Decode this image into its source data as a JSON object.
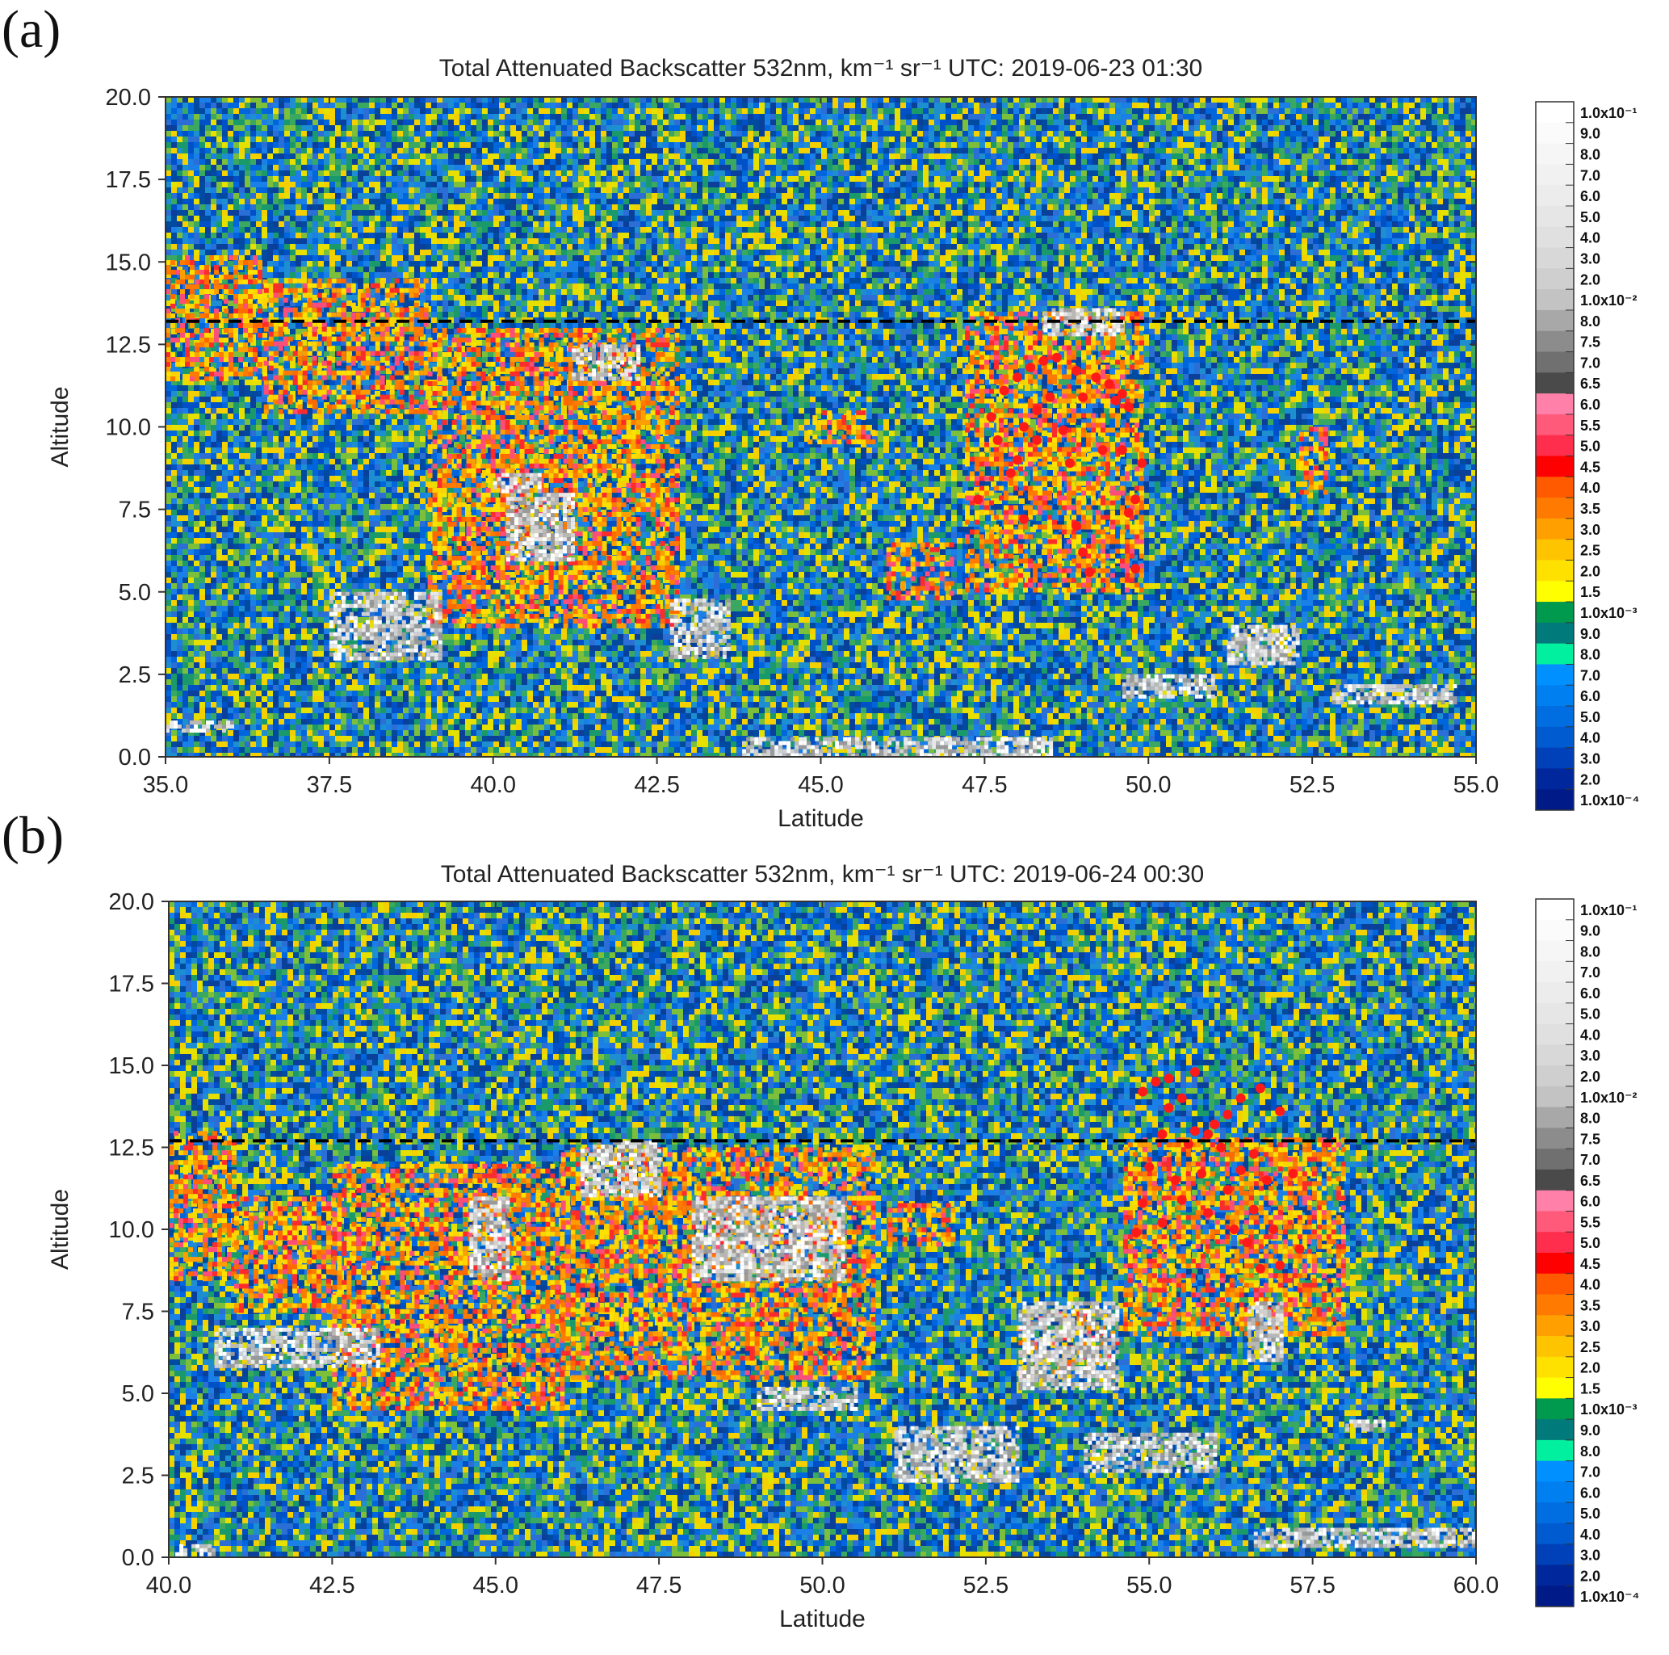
{
  "chart_data": [
    {
      "type": "heatmap",
      "panel_label": "(a)",
      "title": "Total Attenuated Backscatter 532nm, km⁻¹ sr⁻¹  UTC: 2019-06-23 01:30",
      "xlabel": "Latitude",
      "ylabel": "Altitude",
      "xlim": [
        35.0,
        55.0
      ],
      "ylim": [
        0.0,
        20.0
      ],
      "xticks": [
        "35.0",
        "37.5",
        "40.0",
        "42.5",
        "45.0",
        "47.5",
        "50.0",
        "52.5",
        "55.0"
      ],
      "yticks": [
        "0.0",
        "2.5",
        "5.0",
        "7.5",
        "10.0",
        "12.5",
        "15.0",
        "17.5",
        "20.0"
      ],
      "reference_line": {
        "y": 13.2,
        "style": "dashed",
        "color": "#000000"
      },
      "cloud_regions": [
        {
          "x": [
            35.0,
            36.5
          ],
          "y": [
            11.5,
            15.2
          ],
          "level": "high"
        },
        {
          "x": [
            36.5,
            39.0
          ],
          "y": [
            10.5,
            14.5
          ],
          "level": "high"
        },
        {
          "x": [
            39.0,
            42.8
          ],
          "y": [
            4.0,
            13.0
          ],
          "level": "high"
        },
        {
          "x": [
            46.0,
            47.0
          ],
          "y": [
            4.8,
            6.5
          ],
          "level": "high"
        },
        {
          "x": [
            47.2,
            49.9
          ],
          "y": [
            5.0,
            13.5
          ],
          "level": "high"
        },
        {
          "x": [
            44.8,
            45.8
          ],
          "y": [
            9.5,
            10.5
          ],
          "level": "high"
        },
        {
          "x": [
            52.3,
            52.7
          ],
          "y": [
            8.0,
            10.0
          ],
          "level": "high"
        }
      ],
      "opaque_cloud_regions": [
        {
          "x": [
            37.5,
            39.2
          ],
          "y": [
            3.0,
            5.0
          ]
        },
        {
          "x": [
            40.0,
            40.7
          ],
          "y": [
            8.0,
            8.6
          ]
        },
        {
          "x": [
            40.2,
            41.2
          ],
          "y": [
            6.0,
            8.0
          ]
        },
        {
          "x": [
            41.2,
            42.2
          ],
          "y": [
            11.5,
            12.5
          ]
        },
        {
          "x": [
            42.7,
            43.6
          ],
          "y": [
            3.0,
            4.8
          ]
        },
        {
          "x": [
            48.4,
            49.6
          ],
          "y": [
            12.8,
            13.6
          ]
        },
        {
          "x": [
            35.0,
            36.0
          ],
          "y": [
            0.8,
            1.1
          ]
        },
        {
          "x": [
            43.8,
            48.5
          ],
          "y": [
            0.0,
            0.6
          ]
        },
        {
          "x": [
            49.6,
            51.0
          ],
          "y": [
            1.8,
            2.5
          ]
        },
        {
          "x": [
            51.2,
            52.3
          ],
          "y": [
            2.8,
            4.0
          ]
        },
        {
          "x": [
            52.8,
            54.7
          ],
          "y": [
            1.6,
            2.2
          ]
        }
      ],
      "highlight_points": [
        [
          47.6,
          10.3
        ],
        [
          47.7,
          9.6
        ],
        [
          47.8,
          11.1
        ],
        [
          47.9,
          8.6
        ],
        [
          48.0,
          11.5
        ],
        [
          48.0,
          9.0
        ],
        [
          48.1,
          7.2
        ],
        [
          48.1,
          10.0
        ],
        [
          48.2,
          11.8
        ],
        [
          48.3,
          9.6
        ],
        [
          48.3,
          10.5
        ],
        [
          48.4,
          12.0
        ],
        [
          48.5,
          10.9
        ],
        [
          48.6,
          12.1
        ],
        [
          48.7,
          9.9
        ],
        [
          48.8,
          8.9
        ],
        [
          48.9,
          11.7
        ],
        [
          48.9,
          7.0
        ],
        [
          49.0,
          10.9
        ],
        [
          49.0,
          6.2
        ],
        [
          49.1,
          5.6
        ],
        [
          49.2,
          11.5
        ],
        [
          49.3,
          9.3
        ],
        [
          49.4,
          11.3
        ],
        [
          49.5,
          10.8
        ],
        [
          49.6,
          9.3
        ],
        [
          49.6,
          11.0
        ],
        [
          49.7,
          7.4
        ],
        [
          49.7,
          10.6
        ],
        [
          49.8,
          5.7
        ],
        [
          49.8,
          7.8
        ],
        [
          49.9,
          8.9
        ],
        [
          47.4,
          7.8
        ]
      ],
      "colorbar": {
        "labels": [
          "1.0x10⁻¹",
          "9.0",
          "8.0",
          "7.0",
          "6.0",
          "5.0",
          "4.0",
          "3.0",
          "2.0",
          "1.0x10⁻²",
          "8.0",
          "7.5",
          "7.0",
          "6.5",
          "6.0",
          "5.5",
          "5.0",
          "4.5",
          "4.0",
          "3.5",
          "3.0",
          "2.5",
          "2.0",
          "1.5",
          "1.0x10⁻³",
          "9.0",
          "8.0",
          "7.0",
          "6.0",
          "5.0",
          "4.0",
          "3.0",
          "2.0",
          "1.0x10⁻⁴"
        ],
        "colors": [
          "#ffffff",
          "#fbfbfb",
          "#f6f6f6",
          "#f1f1f1",
          "#ececec",
          "#e6e6e6",
          "#e0e0e0",
          "#d8d8d8",
          "#cfcfcf",
          "#c3c3c3",
          "#a8a8a8",
          "#8c8c8c",
          "#707070",
          "#4a4a4a",
          "#ff80a8",
          "#ff5a7a",
          "#ff2e4c",
          "#ff0000",
          "#ff5a00",
          "#ff7a00",
          "#ffa000",
          "#ffc400",
          "#ffe100",
          "#ffff00",
          "#009a4e",
          "#007a7a",
          "#00f0a0",
          "#0090ff",
          "#0080f0",
          "#006ee0",
          "#005ad0",
          "#0040b8",
          "#00289c",
          "#001a88"
        ]
      }
    },
    {
      "type": "heatmap",
      "panel_label": "(b)",
      "title": "Total Attenuated Backscatter 532nm, km⁻¹ sr⁻¹  UTC: 2019-06-24 00:30",
      "xlabel": "Latitude",
      "ylabel": "Altitude",
      "xlim": [
        40.0,
        60.0
      ],
      "ylim": [
        0.0,
        20.0
      ],
      "xticks": [
        "40.0",
        "42.5",
        "45.0",
        "47.5",
        "50.0",
        "52.5",
        "55.0",
        "57.5",
        "60.0"
      ],
      "yticks": [
        "0.0",
        "2.5",
        "5.0",
        "7.5",
        "10.0",
        "12.5",
        "15.0",
        "17.5",
        "20.0"
      ],
      "reference_line": {
        "y": 12.7,
        "style": "dashed",
        "color": "#000000"
      },
      "cloud_regions": [
        {
          "x": [
            40.0,
            41.0
          ],
          "y": [
            8.5,
            13.0
          ],
          "level": "high"
        },
        {
          "x": [
            41.0,
            42.5
          ],
          "y": [
            7.5,
            11.0
          ],
          "level": "high"
        },
        {
          "x": [
            42.5,
            46.0
          ],
          "y": [
            4.5,
            12.0
          ],
          "level": "high"
        },
        {
          "x": [
            46.0,
            50.8
          ],
          "y": [
            5.5,
            12.5
          ],
          "level": "high"
        },
        {
          "x": [
            51.0,
            52.0
          ],
          "y": [
            9.5,
            10.8
          ],
          "level": "high"
        },
        {
          "x": [
            54.6,
            58.0
          ],
          "y": [
            6.8,
            12.8
          ],
          "level": "high"
        },
        {
          "x": [
            53.0,
            54.5
          ],
          "y": [
            5.5,
            7.5
          ],
          "level": "mid"
        }
      ],
      "opaque_cloud_regions": [
        {
          "x": [
            40.7,
            43.2
          ],
          "y": [
            5.8,
            7.0
          ]
        },
        {
          "x": [
            46.3,
            47.5
          ],
          "y": [
            11.0,
            12.7
          ]
        },
        {
          "x": [
            44.6,
            45.2
          ],
          "y": [
            8.5,
            11.0
          ]
        },
        {
          "x": [
            48.0,
            50.3
          ],
          "y": [
            8.5,
            11.0
          ]
        },
        {
          "x": [
            49.0,
            50.5
          ],
          "y": [
            4.5,
            5.2
          ]
        },
        {
          "x": [
            51.1,
            53.0
          ],
          "y": [
            2.3,
            4.0
          ]
        },
        {
          "x": [
            53.0,
            54.5
          ],
          "y": [
            5.2,
            7.8
          ]
        },
        {
          "x": [
            54.0,
            56.0
          ],
          "y": [
            2.6,
            3.8
          ]
        },
        {
          "x": [
            56.5,
            57.0
          ],
          "y": [
            6.0,
            7.8
          ]
        },
        {
          "x": [
            40.1,
            40.7
          ],
          "y": [
            0.1,
            0.4
          ]
        },
        {
          "x": [
            56.6,
            60.0
          ],
          "y": [
            0.4,
            0.9
          ]
        },
        {
          "x": [
            58.0,
            58.6
          ],
          "y": [
            3.9,
            4.2
          ]
        }
      ],
      "highlight_points": [
        [
          54.8,
          9.9
        ],
        [
          54.9,
          10.8
        ],
        [
          54.9,
          14.2
        ],
        [
          55.0,
          11.9
        ],
        [
          55.1,
          14.5
        ],
        [
          55.2,
          12.9
        ],
        [
          55.2,
          10.2
        ],
        [
          55.3,
          14.6
        ],
        [
          55.3,
          13.7
        ],
        [
          55.4,
          11.5
        ],
        [
          55.5,
          14.0
        ],
        [
          55.5,
          10.9
        ],
        [
          55.6,
          12.6
        ],
        [
          55.7,
          14.8
        ],
        [
          55.7,
          13.0
        ],
        [
          55.8,
          11.7
        ],
        [
          55.9,
          12.9
        ],
        [
          55.9,
          10.5
        ],
        [
          56.0,
          13.2
        ],
        [
          56.1,
          12.5
        ],
        [
          56.2,
          11.2
        ],
        [
          56.2,
          13.5
        ],
        [
          56.3,
          10.0
        ],
        [
          56.4,
          14.0
        ],
        [
          56.4,
          11.8
        ],
        [
          56.5,
          9.6
        ],
        [
          56.6,
          12.3
        ],
        [
          56.6,
          10.6
        ],
        [
          56.7,
          14.3
        ],
        [
          56.7,
          8.8
        ],
        [
          56.8,
          11.5
        ],
        [
          56.9,
          10.0
        ],
        [
          57.0,
          13.6
        ],
        [
          57.0,
          8.9
        ],
        [
          57.2,
          11.7
        ],
        [
          57.3,
          9.4
        ]
      ],
      "colorbar": {
        "labels": [
          "1.0x10⁻¹",
          "9.0",
          "8.0",
          "7.0",
          "6.0",
          "5.0",
          "4.0",
          "3.0",
          "2.0",
          "1.0x10⁻²",
          "8.0",
          "7.5",
          "7.0",
          "6.5",
          "6.0",
          "5.5",
          "5.0",
          "4.5",
          "4.0",
          "3.5",
          "3.0",
          "2.5",
          "2.0",
          "1.5",
          "1.0x10⁻³",
          "9.0",
          "8.0",
          "7.0",
          "6.0",
          "5.0",
          "4.0",
          "3.0",
          "2.0",
          "1.0x10⁻⁴"
        ],
        "colors": [
          "#ffffff",
          "#fbfbfb",
          "#f6f6f6",
          "#f1f1f1",
          "#ececec",
          "#e6e6e6",
          "#e0e0e0",
          "#d8d8d8",
          "#cfcfcf",
          "#c3c3c3",
          "#a8a8a8",
          "#8c8c8c",
          "#707070",
          "#4a4a4a",
          "#ff80a8",
          "#ff5a7a",
          "#ff2e4c",
          "#ff0000",
          "#ff5a00",
          "#ff7a00",
          "#ffa000",
          "#ffc400",
          "#ffe100",
          "#ffff00",
          "#009a4e",
          "#007a7a",
          "#00f0a0",
          "#0090ff",
          "#0080f0",
          "#006ee0",
          "#005ad0",
          "#0040b8",
          "#00289c",
          "#001a88"
        ]
      }
    }
  ]
}
